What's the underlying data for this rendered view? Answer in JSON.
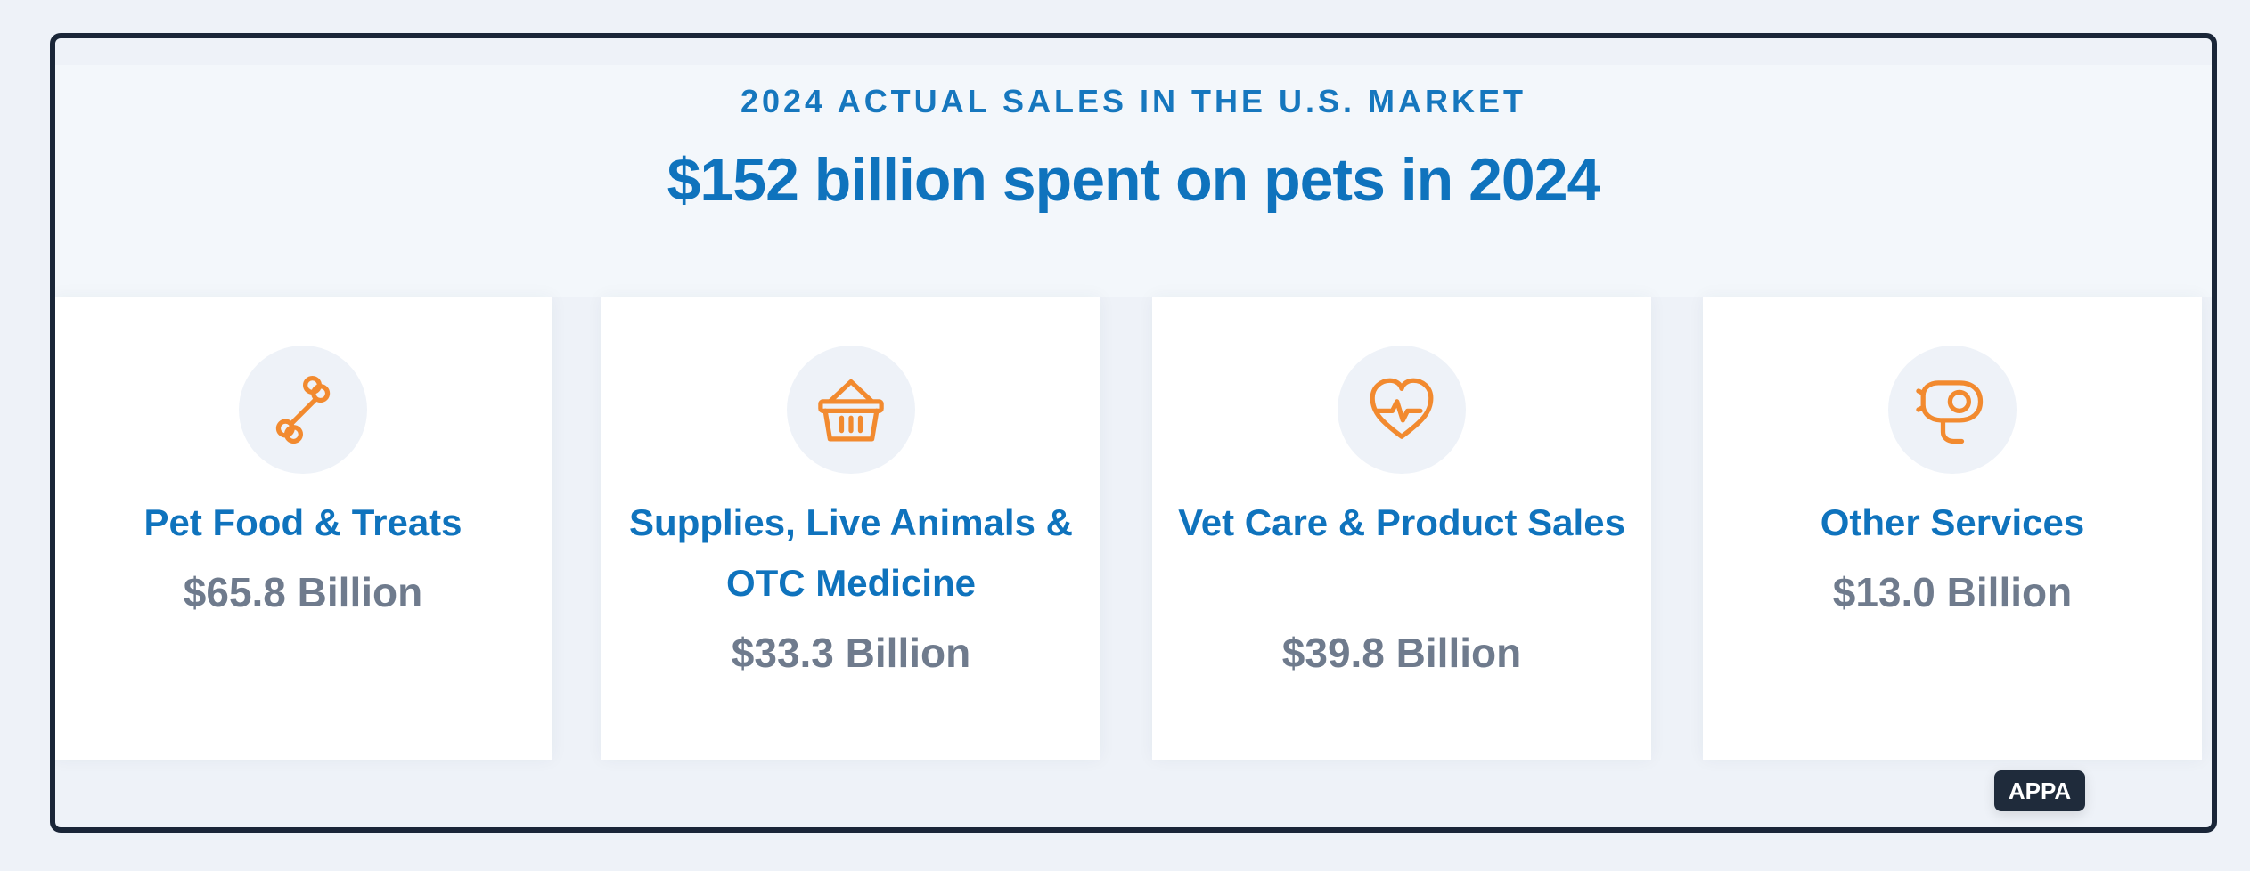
{
  "header": {
    "kicker": "2024 ACTUAL SALES IN THE U.S. MARKET",
    "headline": "$152 billion spent on pets in 2024"
  },
  "cards": [
    {
      "icon": "bone-icon",
      "title": "Pet Food & Treats",
      "value": "$65.8 Billion"
    },
    {
      "icon": "basket-icon",
      "title": "Supplies, Live Animals & OTC Medicine",
      "value": "$33.3 Billion"
    },
    {
      "icon": "heart-pulse-icon",
      "title": "Vet Care & Product Sales",
      "value": "$39.8 Billion"
    },
    {
      "icon": "hair-dryer-icon",
      "title": "Other Services",
      "value": "$13.0 Billion"
    }
  ],
  "source": {
    "label": "APPA"
  },
  "colors": {
    "accent": "#0f73bd",
    "icon_orange": "#f28a2f",
    "muted_value": "#6f7b8d",
    "frame": "#1a2638"
  }
}
